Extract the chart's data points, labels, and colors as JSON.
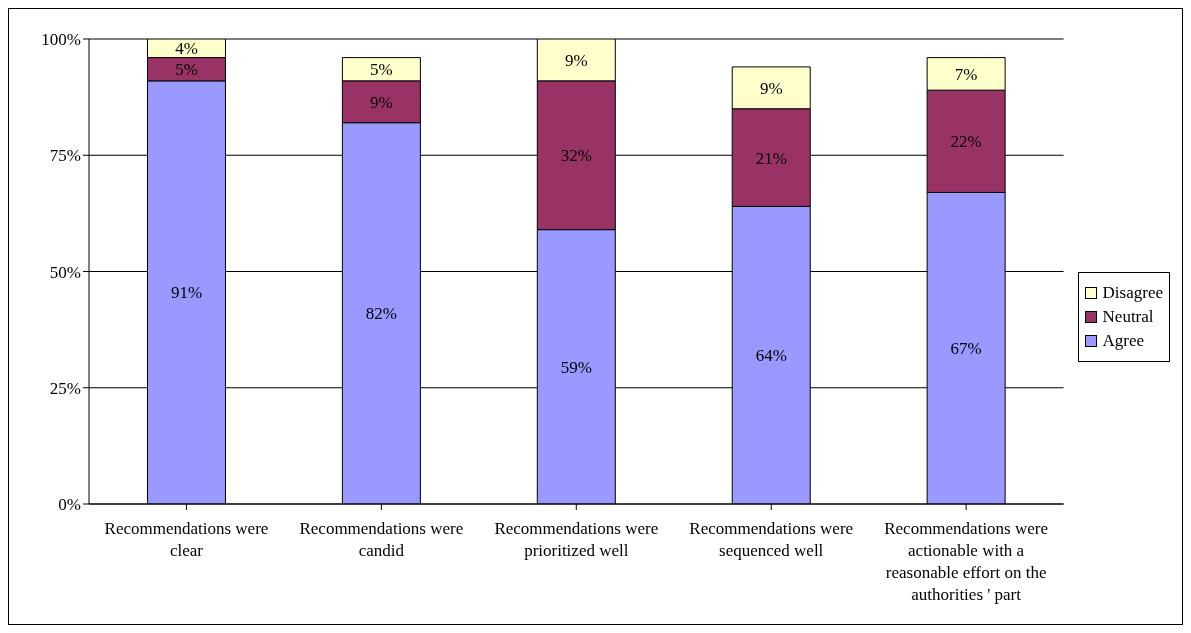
{
  "chart_data": {
    "type": "bar",
    "stacked": true,
    "categories": [
      "Recommendations were clear",
      "Recommendations were candid",
      "Recommendations were prioritized well",
      "Recommendations were sequenced well",
      "Recommendations were actionable with a reasonable effort on the authorities ' part"
    ],
    "series": [
      {
        "name": "Agree",
        "color": "#9999ff",
        "values": [
          91,
          82,
          59,
          64,
          67
        ],
        "value_labels": [
          "91%",
          "82%",
          "59%",
          "64%",
          "67%"
        ]
      },
      {
        "name": "Neutral",
        "color": "#993366",
        "values": [
          5,
          9,
          32,
          21,
          22
        ],
        "value_labels": [
          "5%",
          "9%",
          "32%",
          "21%",
          "22%"
        ]
      },
      {
        "name": "Disagree",
        "color": "#ffffcc",
        "values": [
          4,
          5,
          9,
          9,
          7
        ],
        "value_labels": [
          "4%",
          "5%",
          "9%",
          "9%",
          "7%"
        ]
      }
    ],
    "ylim": [
      0,
      100
    ],
    "yticks": [
      {
        "value": 0,
        "label": "0%"
      },
      {
        "value": 25,
        "label": "25%"
      },
      {
        "value": 50,
        "label": "50%"
      },
      {
        "value": 75,
        "label": "75%"
      },
      {
        "value": 100,
        "label": "100%"
      }
    ],
    "grid": "y",
    "legend": "right"
  }
}
